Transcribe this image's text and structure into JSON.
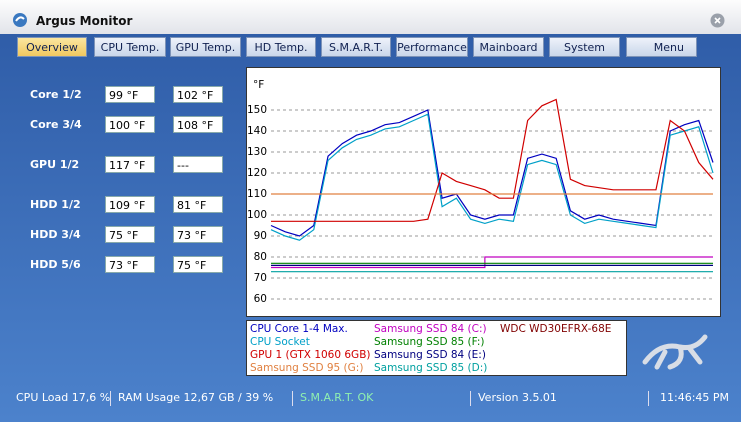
{
  "window": {
    "title": "Argus Monitor"
  },
  "tabs": [
    "Overview",
    "CPU Temp.",
    "GPU Temp.",
    "HD Temp.",
    "S.M.A.R.T.",
    "Performance",
    "Mainboard",
    "System",
    "Menu"
  ],
  "readings": [
    {
      "label": "Core 1/2",
      "values": [
        "99 °F",
        "102 °F"
      ]
    },
    {
      "label": "Core 3/4",
      "values": [
        "100 °F",
        "108 °F"
      ]
    },
    {
      "label": "GPU 1/2",
      "values": [
        "117 °F",
        "---"
      ]
    },
    {
      "label": "HDD 1/2",
      "values": [
        "109 °F",
        "81 °F"
      ]
    },
    {
      "label": "HDD 3/4",
      "values": [
        "75 °F",
        "73 °F"
      ]
    },
    {
      "label": "HDD 5/6",
      "values": [
        "73 °F",
        "75 °F"
      ]
    }
  ],
  "chart": {
    "type": "line",
    "unit": "°F",
    "ylim": [
      60,
      160
    ],
    "yticks": [
      60,
      70,
      80,
      90,
      100,
      110,
      120,
      130,
      140,
      150
    ],
    "grid": true,
    "series": [
      {
        "name": "CPU Core 1-4 Max.",
        "color": "#0000c0",
        "values": [
          95,
          92,
          90,
          95,
          128,
          134,
          138,
          140,
          143,
          144,
          147,
          150,
          108,
          110,
          100,
          98,
          100,
          100,
          127,
          129,
          127,
          102,
          98,
          100,
          98,
          97,
          96,
          95,
          140,
          143,
          145,
          125
        ]
      },
      {
        "name": "CPU Socket",
        "color": "#00a0c8",
        "values": [
          93,
          90,
          88,
          93,
          126,
          132,
          136,
          138,
          141,
          142,
          145,
          148,
          104,
          108,
          98,
          96,
          98,
          97,
          124,
          126,
          124,
          100,
          96,
          98,
          97,
          96,
          95,
          94,
          138,
          140,
          142,
          120
        ]
      },
      {
        "name": "GPU 1 (GTX 1060 6GB)",
        "color": "#d00000",
        "values": [
          97,
          97,
          97,
          97,
          97,
          97,
          97,
          97,
          97,
          97,
          97,
          98,
          120,
          116,
          114,
          112,
          108,
          108,
          145,
          152,
          155,
          117,
          114,
          113,
          112,
          112,
          112,
          112,
          145,
          140,
          125,
          117
        ]
      },
      {
        "name": "Samsung SSD 95 (G:)",
        "color": "#e08040",
        "values": [
          110,
          110,
          110,
          110,
          110,
          110,
          110,
          110,
          110,
          110,
          110,
          110,
          110,
          110,
          110,
          110,
          110,
          110,
          110,
          110,
          110,
          110,
          110,
          110,
          110,
          110,
          110,
          110,
          110,
          110,
          110,
          110
        ]
      },
      {
        "name": "Samsung SSD 84 (C:)",
        "color": "#c000c0",
        "values": [
          75,
          75,
          75,
          75,
          75,
          75,
          75,
          75,
          75,
          75,
          75,
          75,
          75,
          75,
          75,
          80,
          80,
          80,
          80,
          80,
          80,
          80,
          80,
          80,
          80,
          80,
          80,
          80,
          80,
          80,
          80,
          80
        ]
      },
      {
        "name": "Samsung SSD 85 (F:)",
        "color": "#008000",
        "values": [
          77,
          77,
          77,
          77,
          77,
          77,
          77,
          77,
          77,
          77,
          77,
          77,
          77,
          77,
          77,
          77,
          77,
          77,
          77,
          77,
          77,
          77,
          77,
          77,
          77,
          77,
          77,
          77,
          77,
          77,
          77,
          77
        ]
      },
      {
        "name": "Samsung SSD 84 (E:)",
        "color": "#000080",
        "values": [
          76,
          76,
          76,
          76,
          76,
          76,
          76,
          76,
          76,
          76,
          76,
          76,
          76,
          76,
          76,
          76,
          76,
          76,
          76,
          76,
          76,
          76,
          76,
          76,
          76,
          76,
          76,
          76,
          76,
          76,
          76,
          76
        ]
      },
      {
        "name": "Samsung SSD 85 (D:)",
        "color": "#00a0a0",
        "values": [
          73,
          73,
          73,
          73,
          73,
          73,
          73,
          73,
          73,
          73,
          73,
          73,
          73,
          73,
          73,
          73,
          73,
          73,
          73,
          73,
          73,
          73,
          73,
          73,
          73,
          73,
          73,
          73,
          73,
          73,
          73,
          73
        ]
      },
      {
        "name": "WDC WD30EFRX-68E",
        "color": "#800000"
      }
    ]
  },
  "status_bar": [
    "CPU Load 17,6 %",
    "RAM Usage 12,67 GB / 39 %",
    "S.M.A.R.T. OK",
    "Version 3.5.01",
    "11:46:45 PM"
  ]
}
